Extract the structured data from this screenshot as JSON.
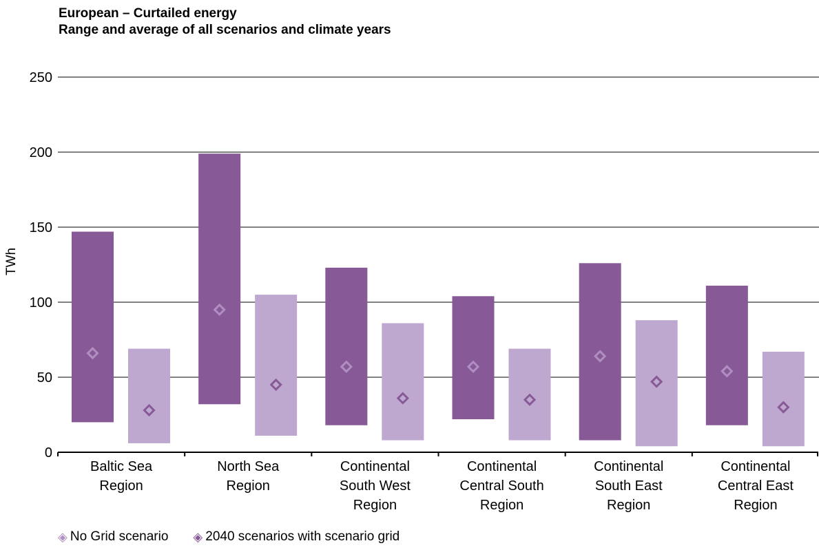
{
  "chart_data": {
    "type": "bar",
    "subtype": "floating-range-with-average",
    "title": "European – Curtailed energy",
    "subtitle": "Range and average of all scenarios and climate years",
    "ylabel": "TWh",
    "xlabel": "",
    "ylim": [
      0,
      250
    ],
    "yticks": [
      0,
      50,
      100,
      150,
      200,
      250
    ],
    "grid": true,
    "legend_position": "bottom-left",
    "categories": [
      [
        "Baltic Sea",
        "Region"
      ],
      [
        "North Sea",
        "Region"
      ],
      [
        "Continental",
        "South West",
        "Region"
      ],
      [
        "Continental",
        "Central South",
        "Region"
      ],
      [
        "Continental",
        "South East",
        "Region"
      ],
      [
        "Continental",
        "Central East",
        "Region"
      ]
    ],
    "series": [
      {
        "name": "No Grid scenario",
        "color": "#875a97",
        "marker_color": "#b08fc0",
        "min": [
          20,
          32,
          18,
          22,
          8,
          18
        ],
        "max": [
          147,
          199,
          123,
          104,
          126,
          111
        ],
        "avg": [
          66,
          95,
          57,
          57,
          64,
          54
        ]
      },
      {
        "name": "2040 scenarios with scenario grid",
        "color": "#bea8cf",
        "marker_color": "#875a97",
        "min": [
          6,
          11,
          8,
          8,
          4,
          4
        ],
        "max": [
          69,
          105,
          86,
          69,
          88,
          67
        ],
        "avg": [
          28,
          45,
          36,
          35,
          47,
          30
        ]
      }
    ]
  },
  "legend": {
    "marker_glyph": "◈",
    "items": [
      "No Grid scenario",
      "2040 scenarios with scenario grid"
    ]
  }
}
